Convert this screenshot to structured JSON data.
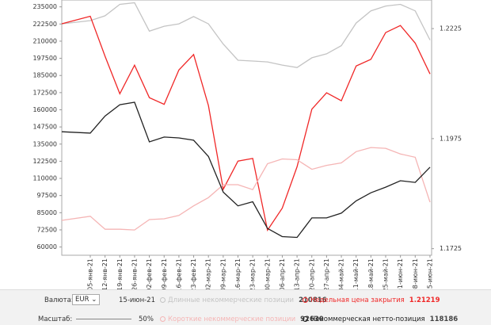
{
  "chart_data": {
    "type": "line",
    "categories": [
      null,
      "05-янв-21",
      "12-янв-21",
      "19-янв-21",
      "26-янв-21",
      "02-фев-21",
      "09-фев-21",
      "16-фев-21",
      "23-фев-21",
      "02-мар-21",
      "09-мар-21",
      "16-мар-21",
      "23-мар-21",
      "30-мар-21",
      "06-апр-21",
      "13-апр-21",
      "20-апр-21",
      "27-апр-21",
      "04-май-21",
      "11-май-21",
      "18-май-21",
      "25-май-21",
      "01-июн-21",
      "08-июн-21",
      "15-июн-21"
    ],
    "ylim": [
      54000,
      240000
    ],
    "yticks": [
      235000,
      222500,
      210000,
      197500,
      185000,
      172500,
      160000,
      147500,
      135000,
      122500,
      110000,
      97500,
      85000,
      72500,
      60000
    ],
    "y2lim": [
      1.171,
      1.229
    ],
    "y2ticks": [
      1.2225,
      1.1975,
      1.1725
    ],
    "series": [
      {
        "name": "Длинные некоммерческие позиции",
        "color": "#c4c4c4",
        "axis": "y",
        "values": [
          222600,
          225000,
          228500,
          236800,
          238000,
          217300,
          220900,
          222600,
          227900,
          222600,
          207900,
          196100,
          195500,
          194900,
          192600,
          190800,
          197900,
          200800,
          206700,
          223200,
          232100,
          235600,
          236800,
          232100,
          210816
        ]
      },
      {
        "name": "Недельная цена закрытия",
        "color": "#f02828",
        "axis": "y2",
        "values": [
          1.2236,
          1.2253,
          1.2162,
          1.2077,
          1.2142,
          1.2068,
          1.2053,
          1.2131,
          1.2166,
          1.205,
          1.186,
          1.1924,
          1.193,
          1.1767,
          1.1817,
          1.1911,
          1.2042,
          1.2079,
          1.2061,
          1.214,
          1.2155,
          1.2216,
          1.2232,
          1.2192,
          1.21219
        ]
      },
      {
        "name": "Короткие некоммерческие позиции",
        "color": "#f5b5b5",
        "axis": "y",
        "values": [
          79400,
          82400,
          72950,
          72950,
          72400,
          80000,
          80600,
          83000,
          90000,
          96000,
          105400,
          105400,
          101800,
          120700,
          124200,
          123600,
          116600,
          119500,
          121300,
          129500,
          132500,
          131900,
          127800,
          125400,
          92630
        ]
      },
      {
        "name": "Некоммерческая нетто-позиция",
        "color": "#222222",
        "axis": "y",
        "values": [
          144000,
          143000,
          155500,
          163700,
          165500,
          136600,
          140100,
          139500,
          137800,
          126000,
          100000,
          90000,
          93000,
          73500,
          67600,
          67000,
          81200,
          81200,
          84700,
          93600,
          99500,
          103600,
          108300,
          107100,
          118186
        ]
      }
    ]
  },
  "controls": {
    "currency_label": "Валюта:",
    "currency": "EUR",
    "date": "15-июн-21",
    "scale_label": "Масштаб:",
    "scale": "50%"
  }
}
